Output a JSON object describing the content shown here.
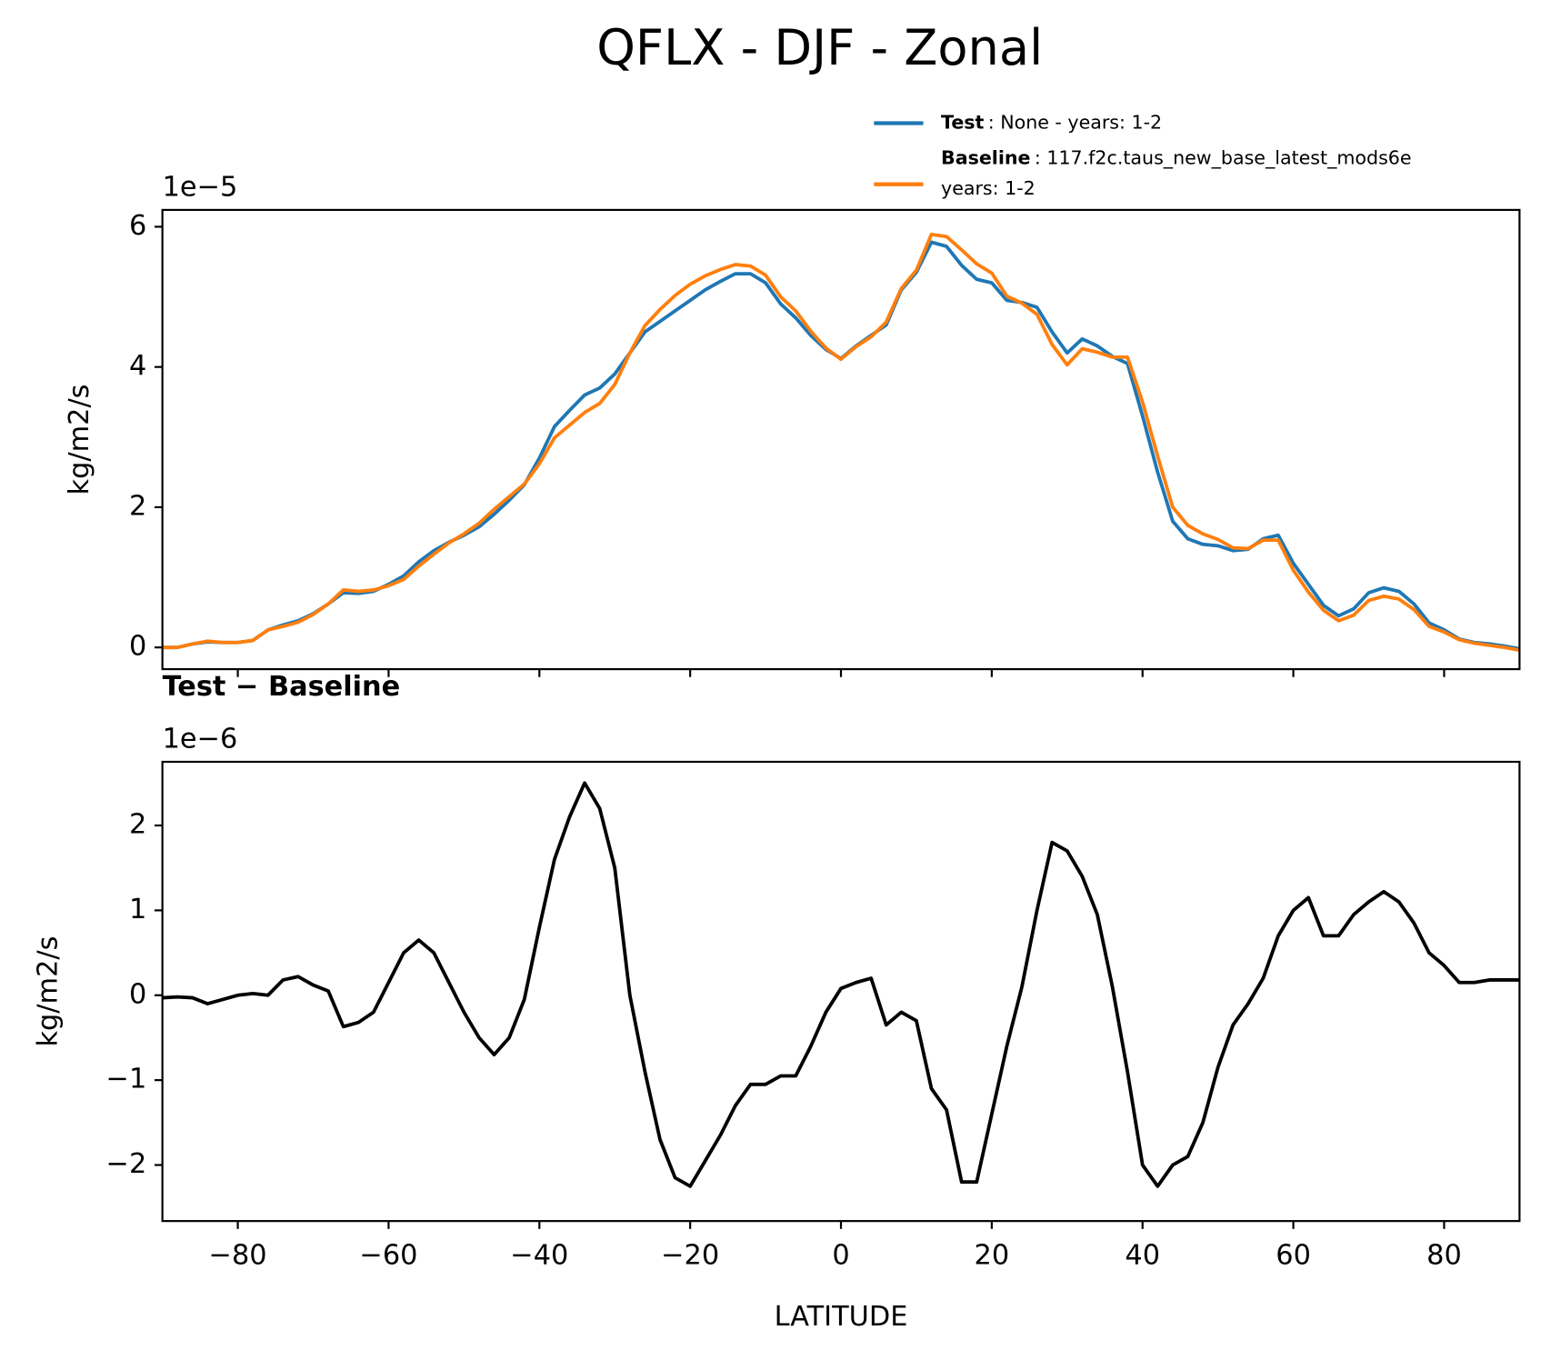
{
  "title": "QFLX - DJF - Zonal",
  "chart_data": [
    {
      "type": "line",
      "ylabel": "kg/m2/s",
      "offset_text": "1e−5",
      "x": [
        -90,
        -88,
        -86,
        -84,
        -82,
        -80,
        -78,
        -76,
        -74,
        -72,
        -70,
        -68,
        -66,
        -64,
        -62,
        -60,
        -58,
        -56,
        -54,
        -52,
        -50,
        -48,
        -46,
        -44,
        -42,
        -40,
        -38,
        -36,
        -34,
        -32,
        -30,
        -28,
        -26,
        -24,
        -22,
        -20,
        -18,
        -16,
        -14,
        -12,
        -10,
        -8,
        -6,
        -4,
        -2,
        0,
        2,
        4,
        6,
        8,
        10,
        12,
        14,
        16,
        18,
        20,
        22,
        24,
        26,
        28,
        30,
        32,
        34,
        36,
        38,
        40,
        42,
        44,
        46,
        48,
        50,
        52,
        54,
        56,
        58,
        60,
        62,
        64,
        66,
        68,
        70,
        72,
        74,
        76,
        78,
        80,
        82,
        84,
        86,
        88,
        90
      ],
      "series": [
        {
          "name": "Test",
          "description": [
            ": None - years: 1-2"
          ],
          "color": "#1f77b4",
          "values": [
            0.0,
            0.0,
            0.05,
            0.08,
            0.07,
            0.07,
            0.1,
            0.25,
            0.32,
            0.38,
            0.48,
            0.62,
            0.78,
            0.77,
            0.8,
            0.9,
            1.02,
            1.22,
            1.38,
            1.5,
            1.6,
            1.72,
            1.9,
            2.1,
            2.32,
            2.7,
            3.15,
            3.38,
            3.6,
            3.7,
            3.9,
            4.2,
            4.5,
            4.65,
            4.8,
            4.95,
            5.1,
            5.22,
            5.33,
            5.33,
            5.2,
            4.9,
            4.7,
            4.45,
            4.25,
            4.12,
            4.3,
            4.45,
            4.6,
            5.1,
            5.35,
            5.78,
            5.72,
            5.45,
            5.25,
            5.2,
            4.95,
            4.92,
            4.85,
            4.5,
            4.2,
            4.4,
            4.3,
            4.15,
            4.05,
            3.3,
            2.5,
            1.8,
            1.55,
            1.47,
            1.45,
            1.38,
            1.4,
            1.55,
            1.6,
            1.2,
            0.9,
            0.6,
            0.45,
            0.55,
            0.78,
            0.85,
            0.8,
            0.62,
            0.35,
            0.25,
            0.12,
            0.07,
            0.05,
            0.02,
            -0.02
          ]
        },
        {
          "name": "Baseline",
          "description": [
            ": 117.f2c.taus_new_base_latest_mods6e",
            "years: 1-2"
          ],
          "color": "#ff7f0e",
          "values": [
            0.0,
            0.0,
            0.05,
            0.09,
            0.07,
            0.07,
            0.1,
            0.25,
            0.3,
            0.36,
            0.47,
            0.62,
            0.82,
            0.8,
            0.82,
            0.88,
            0.97,
            1.16,
            1.33,
            1.49,
            1.62,
            1.77,
            1.97,
            2.15,
            2.33,
            2.62,
            2.99,
            3.17,
            3.35,
            3.48,
            3.75,
            4.2,
            4.59,
            4.82,
            5.02,
            5.18,
            5.3,
            5.39,
            5.46,
            5.44,
            5.31,
            5.0,
            4.8,
            4.51,
            4.27,
            4.11,
            4.29,
            4.43,
            4.64,
            5.12,
            5.38,
            5.89,
            5.86,
            5.67,
            5.47,
            5.34,
            5.01,
            4.91,
            4.75,
            4.32,
            4.03,
            4.26,
            4.21,
            4.14,
            4.14,
            3.5,
            2.73,
            2.0,
            1.74,
            1.62,
            1.54,
            1.42,
            1.41,
            1.53,
            1.53,
            1.1,
            0.79,
            0.53,
            0.38,
            0.46,
            0.67,
            0.73,
            0.69,
            0.54,
            0.3,
            0.22,
            0.11,
            0.06,
            0.03,
            0.0,
            -0.04
          ]
        }
      ],
      "xlim": [
        -90,
        90
      ],
      "ylim": [
        -0.31,
        6.24
      ],
      "yticks": [
        0,
        2,
        4,
        6
      ],
      "legend": "upper right"
    },
    {
      "type": "line",
      "title": "Test − Baseline",
      "xlabel": "LATITUDE",
      "ylabel": "kg/m2/s",
      "offset_text": "1e−6",
      "x": [
        -90,
        -88,
        -86,
        -84,
        -82,
        -80,
        -78,
        -76,
        -74,
        -72,
        -70,
        -68,
        -66,
        -64,
        -62,
        -60,
        -58,
        -56,
        -54,
        -52,
        -50,
        -48,
        -46,
        -44,
        -42,
        -40,
        -38,
        -36,
        -34,
        -32,
        -30,
        -28,
        -26,
        -24,
        -22,
        -20,
        -18,
        -16,
        -14,
        -12,
        -10,
        -8,
        -6,
        -4,
        -2,
        0,
        2,
        4,
        6,
        8,
        10,
        12,
        14,
        16,
        18,
        20,
        22,
        24,
        26,
        28,
        30,
        32,
        34,
        36,
        38,
        40,
        42,
        44,
        46,
        48,
        50,
        52,
        54,
        56,
        58,
        60,
        62,
        64,
        66,
        68,
        70,
        72,
        74,
        76,
        78,
        80,
        82,
        84,
        86,
        88,
        90
      ],
      "series": [
        {
          "color": "#000000",
          "values": [
            -0.03,
            -0.02,
            -0.03,
            -0.1,
            -0.05,
            0.0,
            0.02,
            0.0,
            0.18,
            0.22,
            0.12,
            0.05,
            -0.37,
            -0.32,
            -0.2,
            0.15,
            0.5,
            0.65,
            0.5,
            0.15,
            -0.2,
            -0.5,
            -0.7,
            -0.5,
            -0.05,
            0.8,
            1.6,
            2.1,
            2.5,
            2.2,
            1.5,
            0.0,
            -0.9,
            -1.7,
            -2.15,
            -2.25,
            -1.95,
            -1.65,
            -1.3,
            -1.05,
            -1.05,
            -0.95,
            -0.95,
            -0.6,
            -0.2,
            0.08,
            0.15,
            0.2,
            -0.35,
            -0.2,
            -0.3,
            -1.1,
            -1.35,
            -2.2,
            -2.2,
            -1.4,
            -0.6,
            0.1,
            1.0,
            1.8,
            1.7,
            1.4,
            0.95,
            0.1,
            -0.9,
            -2.0,
            -2.25,
            -2.0,
            -1.9,
            -1.5,
            -0.85,
            -0.35,
            -0.1,
            0.2,
            0.7,
            1.0,
            1.15,
            0.7,
            0.7,
            0.95,
            1.1,
            1.22,
            1.1,
            0.85,
            0.5,
            0.35,
            0.15,
            0.15,
            0.18,
            0.18,
            0.18
          ]
        }
      ],
      "xlim": [
        -90,
        90
      ],
      "ylim": [
        -2.66,
        2.75
      ],
      "xticks": [
        {
          "value": -80,
          "label": "−80"
        },
        {
          "value": -60,
          "label": "−60"
        },
        {
          "value": -40,
          "label": "−40"
        },
        {
          "value": -20,
          "label": "−20"
        },
        0,
        20,
        40,
        60,
        80
      ],
      "yticks": [
        {
          "value": -2,
          "label": "−2"
        },
        {
          "value": -1,
          "label": "−1"
        },
        0,
        1,
        2
      ]
    }
  ]
}
